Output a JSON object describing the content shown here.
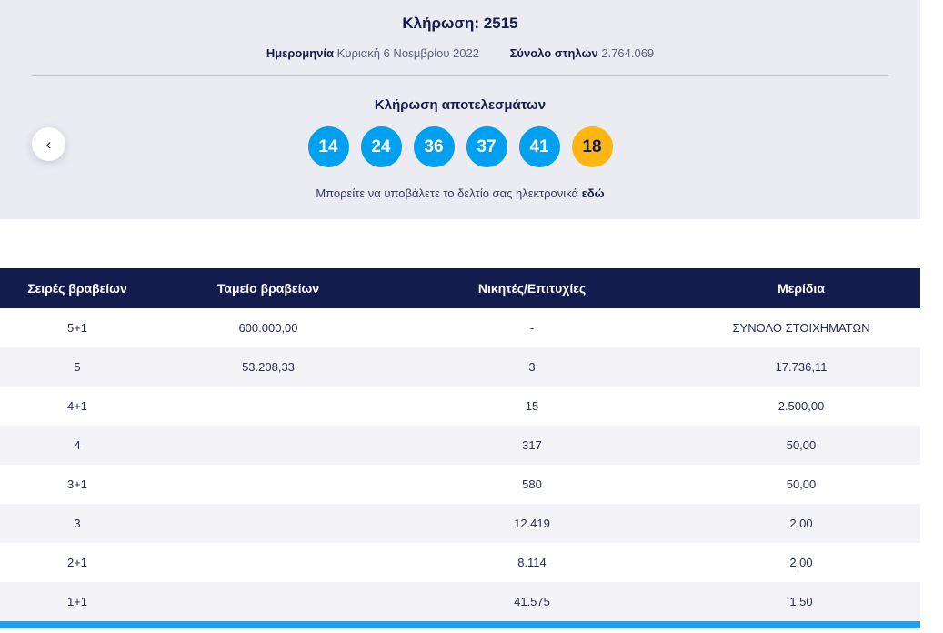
{
  "header": {
    "title": "Κλήρωση: 2515",
    "date_label": "Ημερομηνία",
    "date_value": "Κυριακή 6 Νοεμβρίου 2022",
    "columns_label": "Σύνολο στηλών",
    "columns_value": "2.764.069"
  },
  "results": {
    "heading": "Κλήρωση αποτελεσμάτων",
    "numbers": [
      "14",
      "24",
      "36",
      "37",
      "41"
    ],
    "joker": "18",
    "footer_text": "Μπορείτε να υποβάλετε το δελτίο σας ηλεκτρονικά",
    "footer_link": "εδώ"
  },
  "carousel": {
    "prev_icon": "‹"
  },
  "table": {
    "headers": [
      "Σειρές βραβείων",
      "Ταμείο βραβείων",
      "Νικητές/Επιτυχίες",
      "Μερίδια"
    ],
    "rows": [
      [
        "5+1",
        "600.000,00",
        "-",
        "ΣΥΝΟΛΟ ΣΤΟΙΧΗΜΑΤΩΝ"
      ],
      [
        "5",
        "53.208,33",
        "3",
        "17.736,11"
      ],
      [
        "4+1",
        "",
        "15",
        "2.500,00"
      ],
      [
        "4",
        "",
        "317",
        "50,00"
      ],
      [
        "3+1",
        "",
        "580",
        "50,00"
      ],
      [
        "3",
        "",
        "12.419",
        "2,00"
      ],
      [
        "2+1",
        "",
        "8.114",
        "2,00"
      ],
      [
        "1+1",
        "",
        "41.575",
        "1,50"
      ]
    ]
  },
  "colors": {
    "navy": "#141b4d",
    "ball_blue": "#00a0f0",
    "ball_orange": "#ffb612",
    "hero_background": "#ebecf2",
    "row_alt": "#f4f4f8",
    "bottom_bar_blue": "#1e9ff2"
  }
}
